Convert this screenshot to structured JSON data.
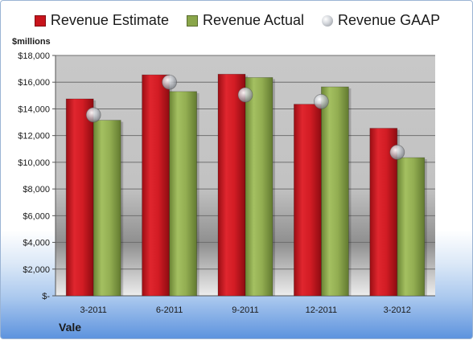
{
  "chart_data": {
    "type": "bar",
    "unit_label": "$millions",
    "company": "Vale",
    "categories": [
      "3-2011",
      "6-2011",
      "9-2011",
      "12-2011",
      "3-2012"
    ],
    "series": [
      {
        "name": "Revenue Estimate",
        "kind": "bar",
        "color": "#c8141c",
        "values": [
          14750,
          16550,
          16600,
          14350,
          12550
        ]
      },
      {
        "name": "Revenue Actual",
        "kind": "bar",
        "color": "#8aa64a",
        "values": [
          13150,
          15300,
          16350,
          15650,
          10350
        ]
      },
      {
        "name": "Revenue GAAP",
        "kind": "marker",
        "color": "#b9bdc4",
        "values": [
          13550,
          16000,
          15050,
          14550,
          10750
        ]
      }
    ],
    "ylim": [
      0,
      18000
    ],
    "yticks": [
      {
        "value": 0,
        "label": "$-"
      },
      {
        "value": 2000,
        "label": "$2,000"
      },
      {
        "value": 4000,
        "label": "$4,000"
      },
      {
        "value": 6000,
        "label": "$6,000"
      },
      {
        "value": 8000,
        "label": "$8,000"
      },
      {
        "value": 10000,
        "label": "$10,000"
      },
      {
        "value": 12000,
        "label": "$12,000"
      },
      {
        "value": 14000,
        "label": "$14,000"
      },
      {
        "value": 16000,
        "label": "$16,000"
      },
      {
        "value": 18000,
        "label": "$18,000"
      }
    ],
    "grid": true,
    "legend_position": "top"
  }
}
